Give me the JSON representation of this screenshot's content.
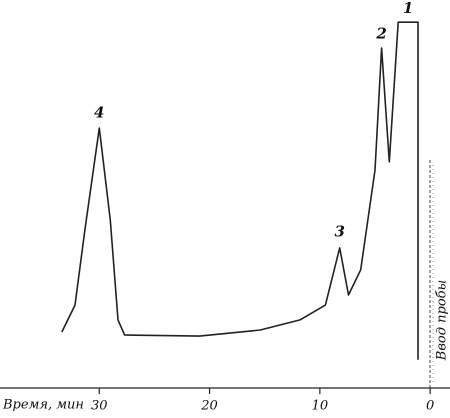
{
  "chart_data": {
    "type": "line",
    "x_label": "Время, мин",
    "xlim": [
      39,
      -1.8
    ],
    "xticks": [
      30,
      20,
      10,
      0
    ],
    "ylim": [
      0,
      100
    ],
    "color": "#222",
    "x": [
      33.4,
      32.2,
      31.3,
      30,
      29,
      28.3,
      27.7,
      20.9,
      15.4,
      11.8,
      9.5,
      8.2,
      7.4,
      6.3,
      5.0,
      4.4,
      3.7,
      2.9,
      1.1,
      1.1
    ],
    "values": [
      13.3,
      20.8,
      41.7,
      70,
      44.4,
      16.7,
      12.5,
      12.2,
      13.9,
      16.7,
      20.8,
      36.7,
      23.6,
      30.6,
      58.3,
      92.2,
      60.6,
      99.4,
      99.4,
      5.6
    ],
    "annotations": [
      {
        "text": "1",
        "x": 2,
        "y": 103
      },
      {
        "text": "2",
        "x": 4.4,
        "y": 96
      },
      {
        "text": "3",
        "x": 8.2,
        "y": 41
      },
      {
        "text": "4",
        "x": 30,
        "y": 74
      }
    ],
    "injection_label": "Ввод пробы"
  }
}
